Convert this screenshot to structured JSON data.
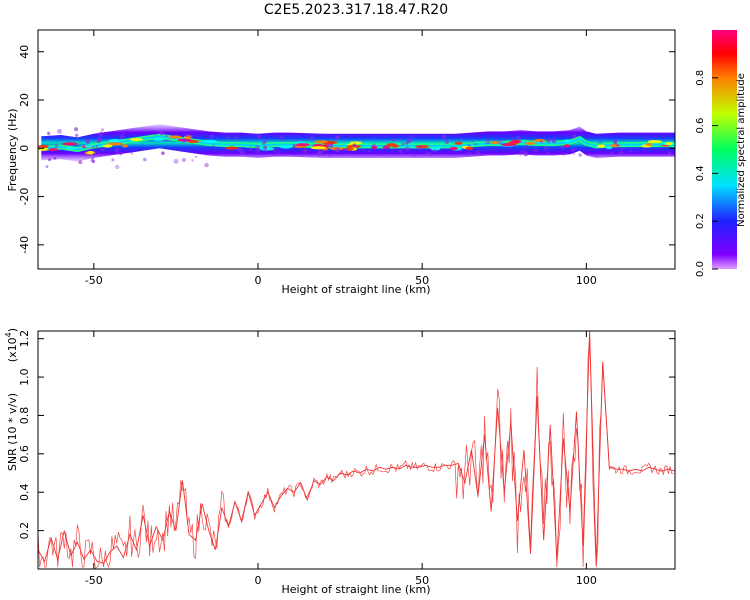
{
  "title": "C2E5.2023.317.18.47.R20",
  "chart_data": [
    {
      "type": "heatmap",
      "xlabel": "Height of straight line (km)",
      "ylabel": "Frequency (Hz)",
      "xlim": [
        -67,
        127
      ],
      "ylim": [
        -50,
        49
      ],
      "xticks": [
        -50,
        0,
        50,
        100
      ],
      "yticks": [
        -40,
        -20,
        0,
        20,
        40
      ],
      "grid": false,
      "ridge": {
        "x": [
          -66,
          -60,
          -55,
          -50,
          -45,
          -40,
          -35,
          -30,
          -25,
          -20,
          -15,
          -10,
          -5,
          0,
          5,
          10,
          20,
          30,
          40,
          50,
          60,
          65,
          70,
          75,
          80,
          85,
          90,
          95,
          98,
          100,
          103,
          110,
          120,
          127
        ],
        "frequency": [
          0,
          0.5,
          -0.5,
          1,
          2,
          3,
          4,
          5,
          4,
          3,
          2,
          1.5,
          1.5,
          1,
          1.5,
          1.5,
          1,
          1,
          1,
          1,
          1,
          1.5,
          2,
          2,
          2.5,
          2,
          2,
          2.5,
          4,
          2,
          1,
          1.5,
          1.5,
          1.5
        ]
      },
      "colorbar": {
        "label": "Normalized spectral amplitude",
        "range": [
          0.0,
          1.0
        ],
        "ticks": [
          "0.0",
          "0.2",
          "0.4",
          "0.6",
          "0.8"
        ],
        "tick_values": [
          0.0,
          0.2,
          0.4,
          0.6,
          0.8
        ],
        "colormap": [
          "#800080",
          "#4000ff",
          "#00ffff",
          "#00ff00",
          "#ffff00",
          "#ff0000",
          "#ff0080"
        ]
      }
    },
    {
      "type": "line",
      "xlabel": "Height of straight line (km)",
      "ylabel": "SNR (10 * v/v)",
      "scale_label": "(x10",
      "scale_exponent": "4",
      "scale_close": ")",
      "xlim": [
        -67,
        127
      ],
      "ylim": [
        0,
        1.24
      ],
      "xticks": [
        -50,
        0,
        50,
        100
      ],
      "yticks": [
        "0.2",
        "0.4",
        "0.6",
        "0.8",
        "1.0",
        "1.2"
      ],
      "ytick_values": [
        0.2,
        0.4,
        0.6,
        0.8,
        1.0,
        1.2
      ],
      "color": "#ee3333",
      "series": [
        {
          "x": [
            -67,
            -65,
            -63,
            -61,
            -59,
            -57,
            -55,
            -53,
            -51,
            -49,
            -47,
            -45,
            -43,
            -41,
            -39,
            -37,
            -35,
            -33,
            -31,
            -29,
            -27,
            -25,
            -23,
            -21,
            -19,
            -17,
            -15,
            -13,
            -11,
            -9,
            -7,
            -5,
            -3,
            -1,
            1,
            3,
            5,
            7,
            9,
            11,
            13,
            15,
            17,
            19,
            21,
            23,
            25,
            27,
            29,
            31,
            33,
            35,
            37,
            39,
            41,
            43,
            45,
            47,
            49,
            51,
            53,
            55,
            57,
            59,
            61,
            63,
            65,
            67,
            69,
            71,
            73,
            75,
            77,
            79,
            81,
            83,
            85,
            87,
            89,
            91,
            93,
            95,
            97,
            99,
            101,
            103,
            105,
            107,
            109,
            111,
            113,
            115,
            117,
            119,
            121,
            123,
            125,
            127
          ],
          "values": [
            0.1,
            0.04,
            0.16,
            0.05,
            0.2,
            0.07,
            0.14,
            0.05,
            0.1,
            0.04,
            0.03,
            0.09,
            0.12,
            0.06,
            0.18,
            0.1,
            0.28,
            0.12,
            0.22,
            0.15,
            0.3,
            0.2,
            0.46,
            0.18,
            0.15,
            0.34,
            0.2,
            0.1,
            0.32,
            0.22,
            0.35,
            0.25,
            0.4,
            0.28,
            0.34,
            0.4,
            0.32,
            0.38,
            0.42,
            0.4,
            0.45,
            0.36,
            0.46,
            0.44,
            0.48,
            0.46,
            0.5,
            0.49,
            0.51,
            0.5,
            0.52,
            0.51,
            0.53,
            0.52,
            0.53,
            0.52,
            0.54,
            0.53,
            0.53,
            0.54,
            0.53,
            0.53,
            0.54,
            0.54,
            0.55,
            0.45,
            0.62,
            0.38,
            0.7,
            0.3,
            0.84,
            0.4,
            0.76,
            0.25,
            0.62,
            0.08,
            0.9,
            0.15,
            0.75,
            0.05,
            0.68,
            0.3,
            0.82,
            0.12,
            1.24,
            0.02,
            1.08,
            0.53,
            0.52,
            0.52,
            0.51,
            0.52,
            0.51,
            0.53,
            0.52,
            0.51,
            0.52,
            0.51
          ]
        }
      ]
    }
  ]
}
